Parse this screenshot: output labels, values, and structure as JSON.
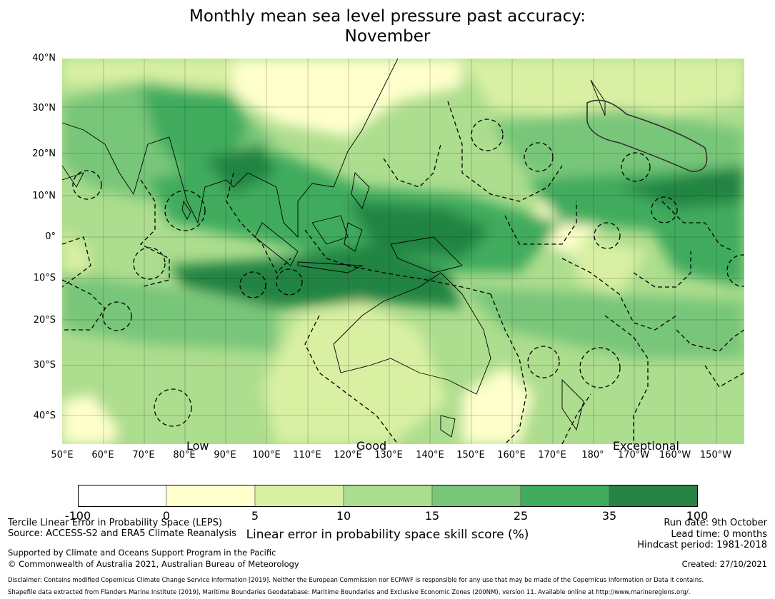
{
  "header": {
    "title_line1": "Monthly mean sea level pressure past accuracy:",
    "title_line2": "November"
  },
  "map": {
    "lat_labels": [
      "40°N",
      "30°N",
      "20°N",
      "10°N",
      "0°",
      "10°S",
      "20°S",
      "30°S",
      "40°S"
    ],
    "lon_labels": [
      "50°E",
      "60°E",
      "70°E",
      "80°E",
      "90°E",
      "100°E",
      "110°E",
      "120°E",
      "130°E",
      "140°E",
      "150°E",
      "160°E",
      "170°E",
      "180°",
      "170°W",
      "160°W",
      "150°W"
    ],
    "skill_labels": {
      "low": "Low",
      "good": "Good",
      "exceptional": "Exceptional"
    },
    "colors": [
      "#ffffff",
      "#ffffcc",
      "#d9f0a3",
      "#addd8e",
      "#78c679",
      "#41ab5d",
      "#238443"
    ]
  },
  "colorbar": {
    "ticks": [
      "-100",
      "0",
      "5",
      "10",
      "15",
      "25",
      "35",
      "100"
    ],
    "label": "Linear error in probability space skill score (%)"
  },
  "footer": {
    "left1": "Tercile Linear Error in Probability Space (LEPS)",
    "left2": "Source: ACCESS-S2 and ERA5 Climate Reanalysis",
    "left3": "Supported by Climate and Oceans Support Program in the Pacific",
    "left4": "© Commonwealth of Australia 2021, Australian Bureau of Meteorology",
    "run_date": "Run date: 9th October",
    "lead_time": "Lead time: 0 months",
    "hindcast": "Hindcast period: 1981-2018",
    "created": "Created: 27/10/2021",
    "disclaimer": "Disclaimer: Contains modified Copernicus Climate Change Service Information [2019]. Neither the European Commission nor ECMWF is responsible for any use that may be made of the Copernicus Information or Data it contains.",
    "shapefile": "Shapefile data extracted from Flanders Marine Institute (2019), Maritime Boundaries Geodatabase: Maritime Boundaries and Exclusive Economic Zones (200NM), version 11. Available online at http://www.marineregions.org/."
  }
}
